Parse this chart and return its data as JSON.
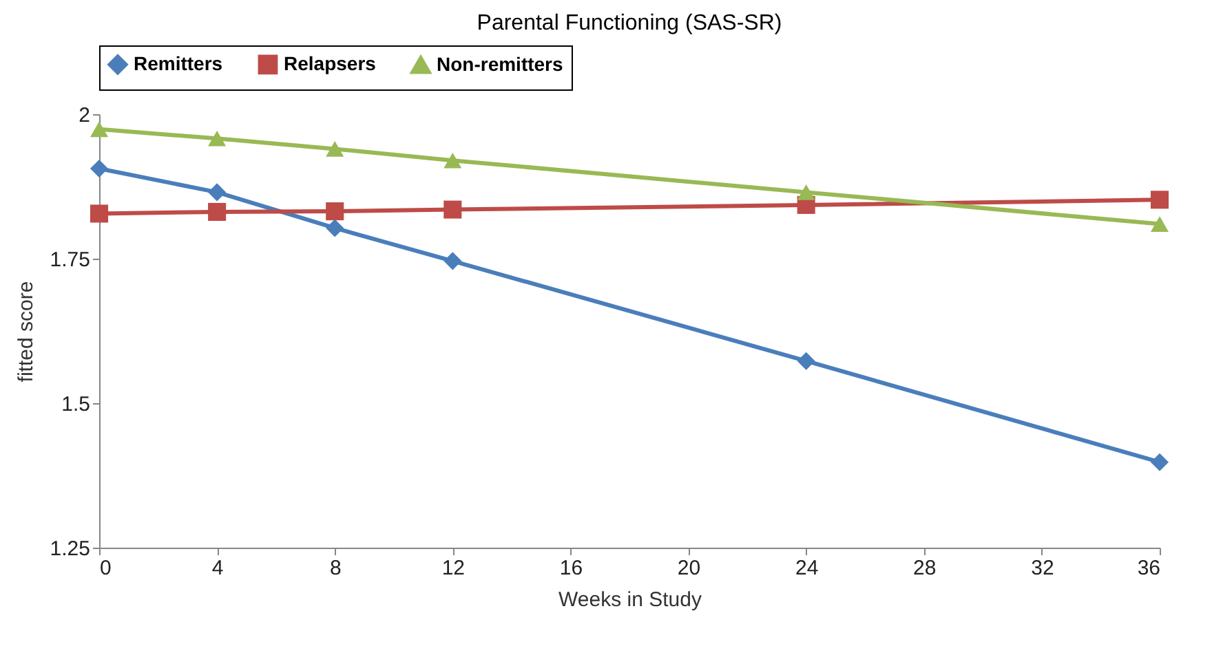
{
  "chart_data": {
    "type": "line",
    "title": "Parental Functioning (SAS-SR)",
    "xlabel": "Weeks in Study",
    "ylabel": "fitted score",
    "x": [
      0,
      4,
      8,
      12,
      24,
      36
    ],
    "series": [
      {
        "name": "Remitters",
        "color": "#4a7ebb",
        "marker": "diamond",
        "values": [
          1.906,
          1.865,
          1.803,
          1.746,
          1.573,
          1.398
        ]
      },
      {
        "name": "Relapsers",
        "color": "#be4b48",
        "marker": "square",
        "values": [
          1.828,
          1.831,
          1.832,
          1.835,
          1.843,
          1.852
        ]
      },
      {
        "name": "Non-remitters",
        "color": "#98b954",
        "marker": "triangle",
        "values": [
          1.974,
          1.958,
          1.94,
          1.92,
          1.865,
          1.81
        ]
      }
    ],
    "xlim": [
      0,
      36
    ],
    "xticks": [
      0,
      4,
      8,
      12,
      16,
      20,
      24,
      28,
      32,
      36
    ],
    "ylim": [
      1.25,
      2
    ],
    "yticks": [
      1.25,
      1.5,
      1.75,
      2
    ],
    "grid": false,
    "legend": "top",
    "line_style": "solid"
  }
}
